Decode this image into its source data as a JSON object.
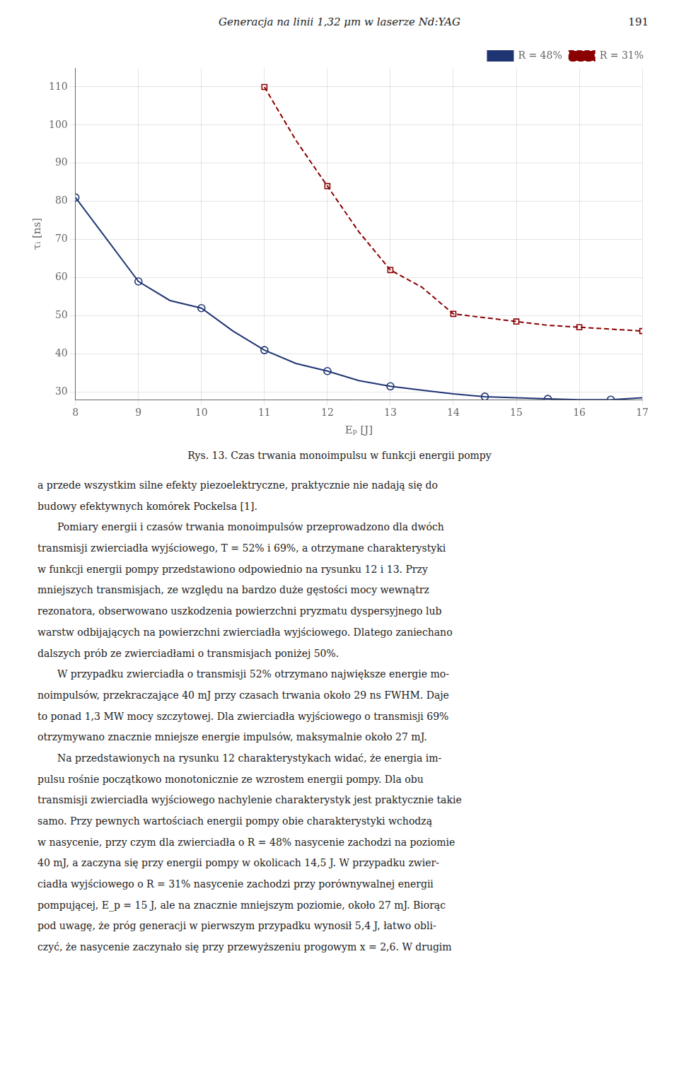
{
  "chart_data": {
    "type": "line",
    "title": "Generacja na linii 1,32 μm w laserze Nd:YAG",
    "page_number": "191",
    "xlabel": "Eₚ [J]",
    "ylabel": "τᵢ [ns]",
    "xlim": [
      8,
      17
    ],
    "ylim": [
      28,
      115
    ],
    "xticks": [
      8,
      9,
      10,
      11,
      12,
      13,
      14,
      15,
      16,
      17
    ],
    "yticks": [
      30,
      40,
      50,
      60,
      70,
      80,
      90,
      100,
      110
    ],
    "grid": true,
    "legend": "upper right",
    "series": [
      {
        "name": "R = 48%",
        "color": "#1f3473",
        "line_style": "solid",
        "marker": "circle",
        "x": [
          8.0,
          8.5,
          9.0,
          9.5,
          10.0,
          10.5,
          11.0,
          11.5,
          12.0,
          12.5,
          13.0,
          13.5,
          14.0,
          14.5,
          15.0,
          15.5,
          16.0,
          16.5,
          17.0
        ],
        "values": [
          81.0,
          70.0,
          59.0,
          54.0,
          52.0,
          46.0,
          41.0,
          37.5,
          35.5,
          33.0,
          31.5,
          30.5,
          29.5,
          28.8,
          28.5,
          28.2,
          28.0,
          28.0,
          28.5
        ],
        "points": {
          "x": [
            8.0,
            9.0,
            10.0,
            11.0,
            12.0,
            13.0,
            14.5,
            15.5,
            16.5
          ],
          "values": [
            81.0,
            59.0,
            52.0,
            41.0,
            35.5,
            31.5,
            28.8,
            28.2,
            28.0
          ]
        }
      },
      {
        "name": "R = 31%",
        "color": "#8b0000",
        "line_style": "dashed",
        "marker": "square",
        "x": [
          11.0,
          11.5,
          12.0,
          12.5,
          13.0,
          13.5,
          14.0,
          14.5,
          15.0,
          15.5,
          16.0,
          16.5,
          17.0
        ],
        "values": [
          110.0,
          96.0,
          84.0,
          72.0,
          62.0,
          57.5,
          50.5,
          49.5,
          48.5,
          47.5,
          47.0,
          46.5,
          46.0
        ],
        "points": {
          "x": [
            11.0,
            12.0,
            13.0,
            14.0,
            15.0,
            16.0,
            17.0
          ],
          "values": [
            110.0,
            84.0,
            62.0,
            50.5,
            48.5,
            47.0,
            46.0
          ]
        }
      }
    ],
    "caption": "Rys. 13. Czas trwania monoimpulsu w funkcji energii pompy",
    "body_lines": [
      "a przede wszystkim silne efekty piezoelektryczne, praktycznie nie nadają się do",
      "budowy efektywnych komórek Pockelsa [1].",
      "  Pomiary energii i czasów trwania monoimpulsów przeprowadzono dla dwóch",
      "transmisji zwierciadła wyjściowego, T = 52% i 69%, a otrzymane charakterystyki",
      "w funkcji energii pompy przedstawiono odpowiednio na rysunku 12 i 13. Przy",
      "mniejszych transmisjach, ze względu na bardzo duże gęstości mocy wewnątrz",
      "rezonatora, obserwowano uszkodzenia powierzchni pryzmatu dyspersyjnego lub",
      "warstw odbijających na powierzchni zwierciadła wyjściowego. Dlatego zaniechano",
      "dalszych prób ze zwierciadłami o transmisjach poniżej 50%.",
      "  W przypadku zwierciadła o transmisji 52% otrzymano największe energie mo-",
      "noimpulsów, przekraczające 40 mJ przy czasach trwania około 29 ns FWHM. Daje",
      "to ponad 1,3 MW mocy szczytowej. Dla zwierciadła wyjściowego o transmisji 69%",
      "otrzymywano znacznie mniejsze energie impulsów, maksymalnie około 27 mJ.",
      "  Na przedstawionych na rysunku 12 charakterystykach widać, że energia im-",
      "pulsu rośnie początkowo monotonicznie ze wzrostem energii pompy. Dla obu",
      "transmisji zwierciadła wyjściowego nachylenie charakterystyk jest praktycznie takie",
      "samo. Przy pewnych wartościach energii pompy obie charakterystyki wchodzą",
      "w nasycenie, przy czym dla zwierciadła o R = 48% nasycenie zachodzi na poziomie",
      "40 mJ, a zaczyna się przy energii pompy w okolicach 14,5 J. W przypadku zwier-",
      "ciadła wyjściowego o R = 31% nasycenie zachodzi przy porównywalnej energii",
      "pompującej, E_p = 15 J, ale na znacznie mniejszym poziomie, około 27 mJ. Biorąc",
      "pod uwagę, że próg generacji w pierwszym przypadku wynosił 5,4 J, łatwo obli-",
      "czyć, że nasycenie zaczynało się przy przewyższeniu progowym x = 2,6. W drugim"
    ]
  }
}
